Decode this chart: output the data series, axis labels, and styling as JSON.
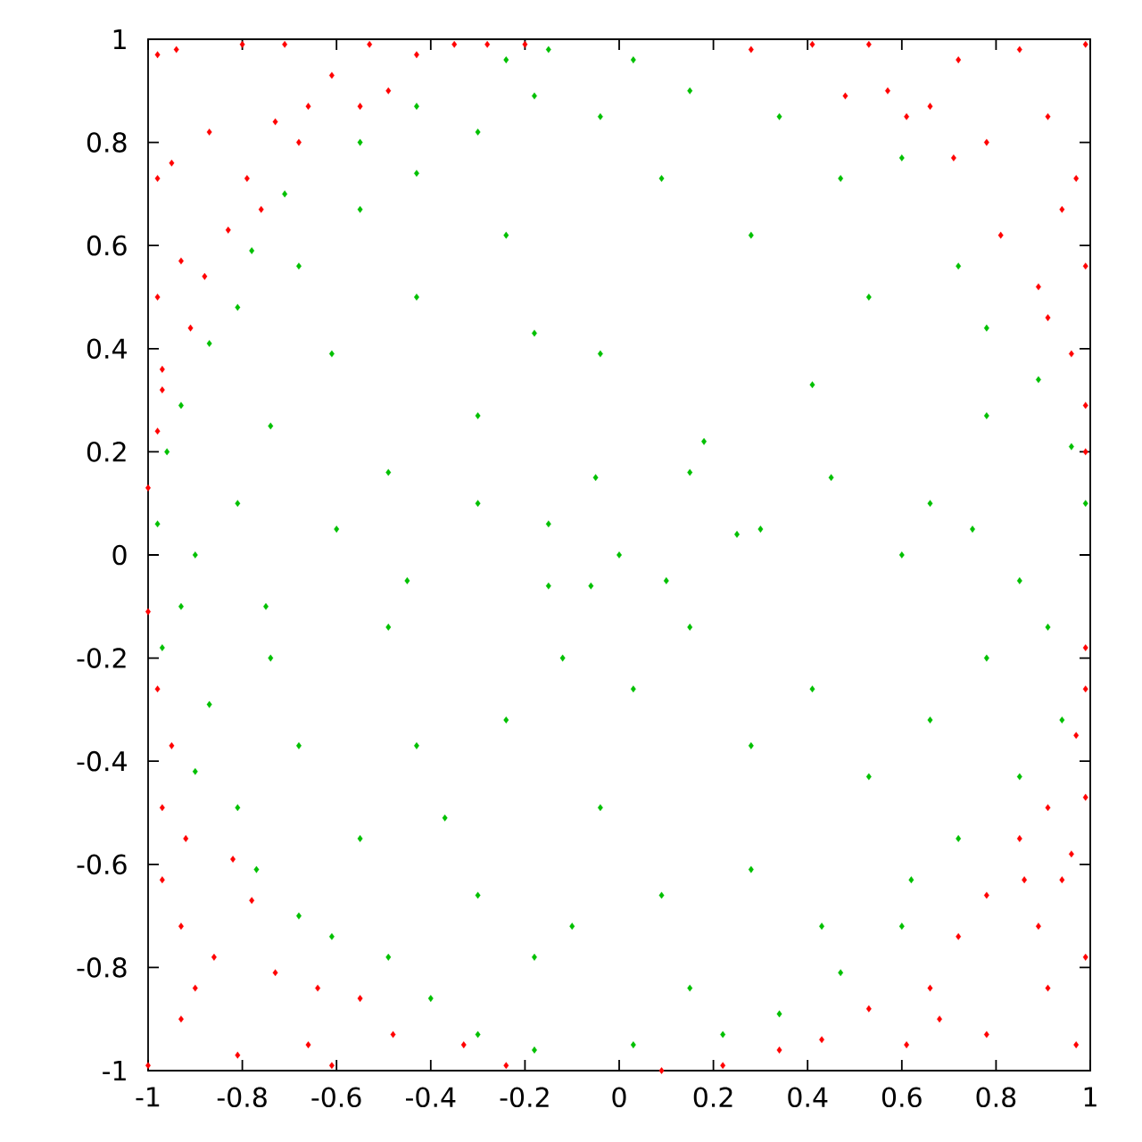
{
  "chart_data": {
    "type": "scatter",
    "marker": "diamond",
    "xlim": [
      -1,
      1
    ],
    "ylim": [
      -1,
      1
    ],
    "xticks": [
      -1,
      -0.8,
      -0.6,
      -0.4,
      -0.2,
      0,
      0.2,
      0.4,
      0.6,
      0.8,
      1
    ],
    "yticks": [
      -1,
      -0.8,
      -0.6,
      -0.4,
      -0.2,
      0,
      0.2,
      0.4,
      0.6,
      0.8,
      1
    ],
    "series": [
      {
        "color": "#00c000",
        "x": [
          -0.55,
          -0.43,
          -0.24,
          -0.15,
          -0.71,
          -0.78,
          -0.87,
          -0.93,
          -0.96,
          -0.98,
          -0.81,
          -0.68,
          -0.55,
          -0.43,
          -0.3,
          -0.18,
          -0.61,
          -0.74,
          -0.43,
          -0.24,
          -0.18,
          -0.49,
          -0.81,
          -0.3,
          -0.15,
          0.03,
          0.15,
          0.34,
          0.47,
          0.6,
          0.72,
          0.78,
          0.89,
          0.96,
          0.99,
          0.53,
          0.28,
          0.09,
          -0.04,
          0.41,
          0.15,
          0.66,
          0.78,
          -0.04,
          0.25,
          -0.97,
          -0.93,
          -0.87,
          -0.9,
          -0.81,
          -0.77,
          -0.68,
          -0.61,
          -0.49,
          -0.4,
          -0.3,
          -0.18,
          -0.68,
          -0.55,
          -0.43,
          -0.3,
          -0.18,
          -0.74,
          -0.49,
          -0.24,
          -0.15,
          -0.37,
          -0.06,
          0.03,
          0.15,
          0.28,
          0.41,
          0.53,
          0.66,
          0.78,
          0.91,
          0.94,
          0.85,
          0.72,
          0.6,
          0.47,
          0.34,
          0.22,
          0.03,
          -0.1,
          0.09,
          0.28,
          0.43,
          -0.04,
          0.15,
          0.62,
          0.0,
          -0.05,
          0.1,
          -0.12,
          0.18,
          0.3,
          -0.3,
          0.45,
          -0.45,
          0.6,
          -0.6,
          0.75,
          -0.75,
          0.85,
          -0.9
        ],
        "values": [
          0.8,
          0.87,
          0.96,
          0.98,
          0.7,
          0.59,
          0.41,
          0.29,
          0.2,
          0.06,
          0.48,
          0.56,
          0.67,
          0.74,
          0.82,
          0.89,
          0.39,
          0.25,
          0.5,
          0.62,
          0.43,
          0.16,
          0.1,
          0.27,
          0.06,
          0.96,
          0.9,
          0.85,
          0.73,
          0.77,
          0.56,
          0.44,
          0.34,
          0.21,
          0.1,
          0.5,
          0.62,
          0.73,
          0.85,
          0.33,
          0.16,
          0.1,
          0.27,
          0.39,
          0.04,
          -0.18,
          -0.1,
          -0.29,
          -0.42,
          -0.49,
          -0.61,
          -0.7,
          -0.74,
          -0.78,
          -0.86,
          -0.93,
          -0.96,
          -0.37,
          -0.55,
          -0.37,
          -0.66,
          -0.78,
          -0.2,
          -0.14,
          -0.32,
          -0.06,
          -0.51,
          -0.06,
          -0.26,
          -0.14,
          -0.37,
          -0.26,
          -0.43,
          -0.32,
          -0.2,
          -0.14,
          -0.32,
          -0.43,
          -0.55,
          -0.72,
          -0.81,
          -0.89,
          -0.93,
          -0.95,
          -0.72,
          -0.66,
          -0.61,
          -0.72,
          -0.49,
          -0.84,
          -0.63,
          0.0,
          0.15,
          -0.05,
          -0.2,
          0.22,
          0.05,
          0.1,
          0.15,
          -0.05,
          0.0,
          0.05,
          0.05,
          -0.1,
          -0.05,
          0.0
        ]
      },
      {
        "color": "#ff0000",
        "x": [
          -0.98,
          -0.94,
          -0.8,
          -0.71,
          -0.53,
          -0.61,
          -0.73,
          -0.87,
          -0.95,
          -0.98,
          -0.79,
          -0.68,
          -0.55,
          -0.49,
          -0.83,
          -0.93,
          -0.98,
          -0.91,
          -0.97,
          -0.98,
          -1.0,
          -0.97,
          -0.88,
          -0.76,
          -0.66,
          -0.43,
          -0.35,
          -0.28,
          -0.2,
          0.28,
          0.41,
          0.53,
          0.57,
          0.66,
          0.72,
          0.85,
          0.99,
          0.78,
          0.91,
          0.97,
          0.81,
          0.89,
          0.99,
          0.96,
          0.99,
          0.99,
          0.71,
          0.61,
          0.48,
          0.91,
          0.94,
          -1.0,
          -0.98,
          -0.95,
          -0.97,
          -0.92,
          -0.97,
          -0.82,
          -0.93,
          -0.78,
          -0.86,
          -0.73,
          -0.64,
          -0.93,
          -0.81,
          -0.66,
          -0.55,
          -0.48,
          -0.33,
          -0.24,
          -1.0,
          -0.61,
          -0.9,
          0.99,
          0.99,
          0.97,
          0.91,
          0.85,
          0.96,
          0.78,
          0.89,
          0.72,
          0.66,
          0.53,
          0.43,
          0.34,
          0.22,
          0.09,
          0.78,
          0.97,
          0.99,
          0.61,
          0.91,
          0.68,
          0.94,
          0.99,
          0.86
        ],
        "values": [
          0.97,
          0.98,
          0.99,
          0.99,
          0.99,
          0.93,
          0.84,
          0.82,
          0.76,
          0.73,
          0.73,
          0.8,
          0.87,
          0.9,
          0.63,
          0.57,
          0.5,
          0.44,
          0.36,
          0.24,
          0.13,
          0.32,
          0.54,
          0.67,
          0.87,
          0.97,
          0.99,
          0.99,
          0.99,
          0.98,
          0.99,
          0.99,
          0.9,
          0.87,
          0.96,
          0.98,
          0.99,
          0.8,
          0.85,
          0.73,
          0.62,
          0.52,
          0.56,
          0.39,
          0.29,
          0.2,
          0.77,
          0.85,
          0.89,
          0.46,
          0.67,
          -0.11,
          -0.26,
          -0.37,
          -0.49,
          -0.55,
          -0.63,
          -0.59,
          -0.72,
          -0.67,
          -0.78,
          -0.81,
          -0.84,
          -0.9,
          -0.97,
          -0.95,
          -0.86,
          -0.93,
          -0.95,
          -0.99,
          -0.99,
          -0.99,
          -0.84,
          -0.18,
          -0.26,
          -0.35,
          -0.49,
          -0.55,
          -0.58,
          -0.66,
          -0.72,
          -0.74,
          -0.84,
          -0.88,
          -0.94,
          -0.96,
          -0.99,
          -1.0,
          -0.93,
          -0.95,
          -0.78,
          -0.95,
          -0.84,
          -0.9,
          -0.63,
          -0.47,
          -0.63
        ]
      }
    ]
  }
}
